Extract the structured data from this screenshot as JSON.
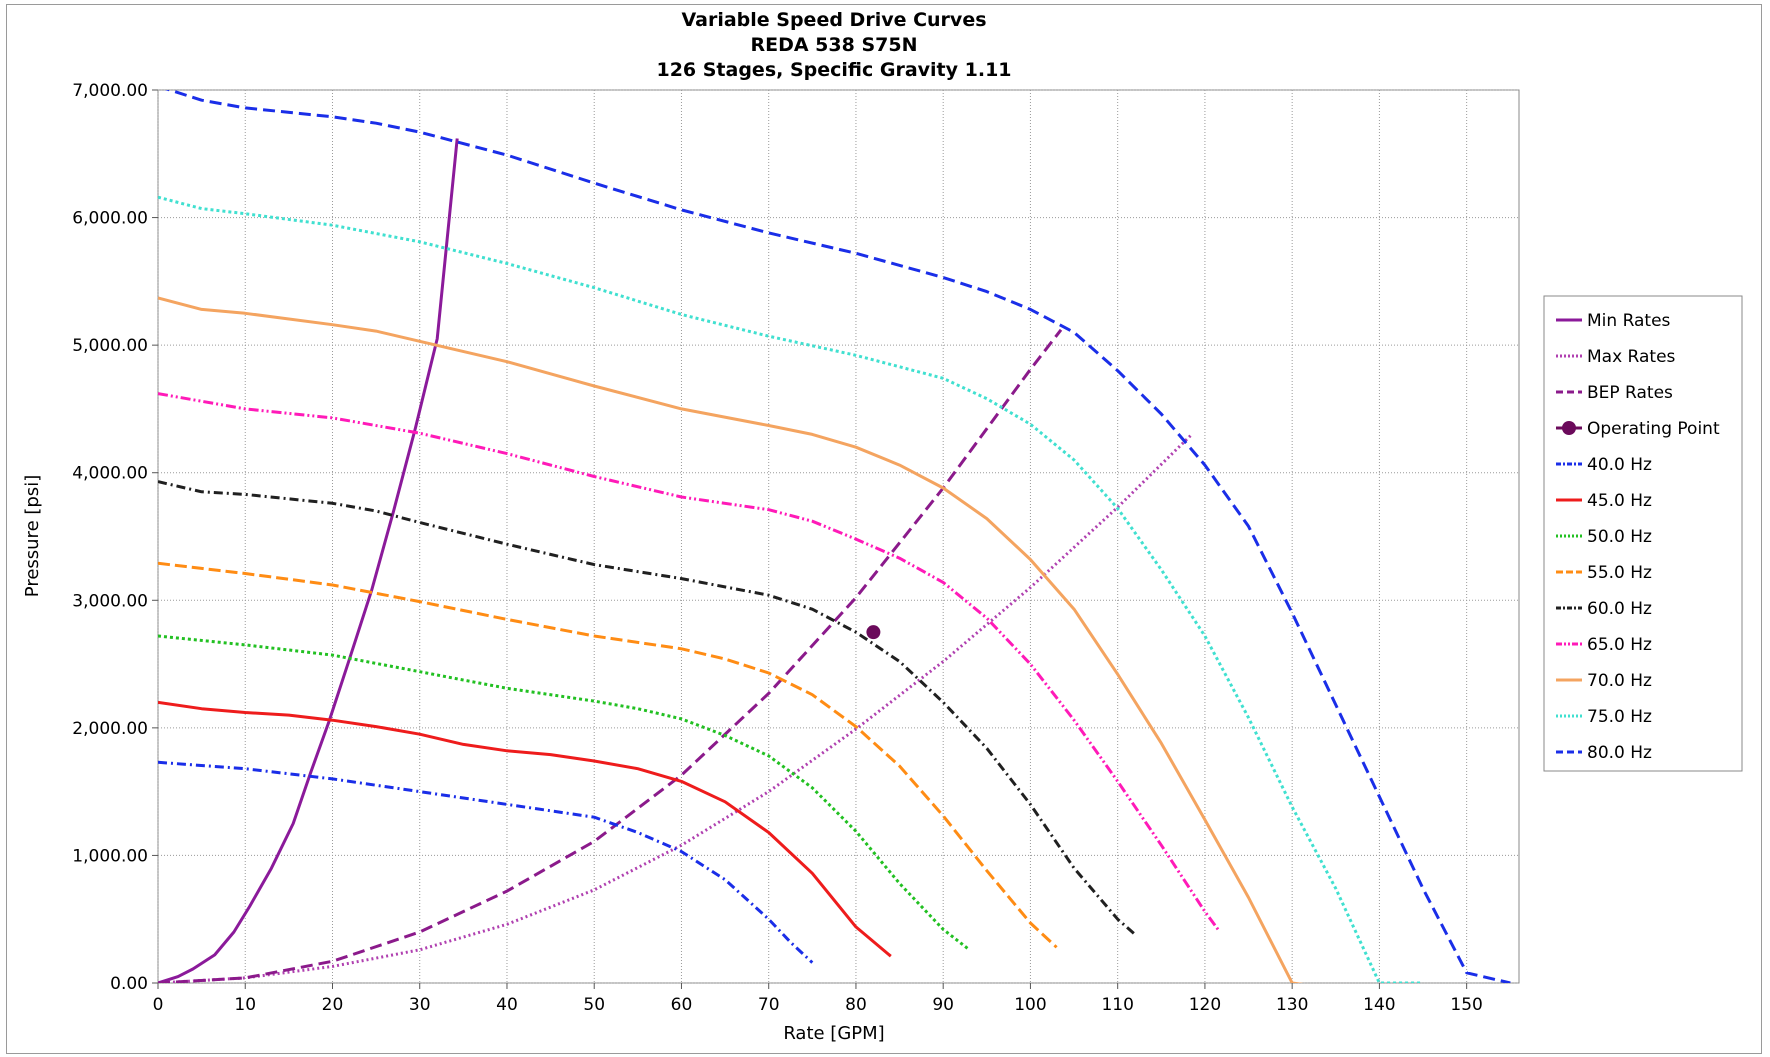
{
  "chart_data": {
    "type": "line",
    "title": [
      "Variable Speed Drive Curves",
      "REDA 538 S75N",
      "126 Stages,  Specific Gravity 1.11"
    ],
    "xlabel": "Rate [GPM]",
    "ylabel": "Pressure [psi]",
    "xlim": [
      0,
      156
    ],
    "ylim": [
      0,
      7000
    ],
    "xticks": [
      0,
      10,
      20,
      30,
      40,
      50,
      60,
      70,
      80,
      90,
      100,
      110,
      120,
      130,
      140,
      150
    ],
    "xtick_labels": [
      "0",
      "10",
      "20",
      "30",
      "40",
      "50",
      "60",
      "70",
      "80",
      "90",
      "100",
      "110",
      "120",
      "130",
      "140",
      "150"
    ],
    "yticks": [
      0,
      1000,
      2000,
      3000,
      4000,
      5000,
      6000,
      7000
    ],
    "ytick_labels": [
      "0.00",
      "1,000.00",
      "2,000.00",
      "3,000.00",
      "4,000.00",
      "5,000.00",
      "6,000.00",
      "7,000.00"
    ],
    "grid": true,
    "legend_position": "right",
    "series": [
      {
        "name": "Min Rates",
        "color": "#8b1a9a",
        "dash": "solid",
        "x": [
          0,
          2.3,
          4,
          6.5,
          8.7,
          10.5,
          13,
          15.5,
          17.5,
          19.6,
          22,
          24.5,
          27,
          29.5,
          32,
          34.3
        ],
        "y": [
          0,
          50,
          110,
          220,
          400,
          600,
          900,
          1250,
          1650,
          2050,
          2550,
          3080,
          3700,
          4350,
          5050,
          6620
        ]
      },
      {
        "name": "Max Rates",
        "color": "#b040b0",
        "dash": "2,3",
        "x": [
          0,
          10,
          20,
          30,
          40,
          50,
          60,
          70,
          80,
          90,
          100,
          110,
          118.5
        ],
        "y": [
          0,
          40,
          130,
          260,
          460,
          730,
          1080,
          1500,
          1990,
          2520,
          3100,
          3730,
          4300
        ]
      },
      {
        "name": "BEP Rates",
        "color": "#8b1a8b",
        "dash": "12,6",
        "x": [
          0,
          10,
          20,
          30,
          40,
          50,
          60,
          70,
          80,
          90,
          100,
          103.5
        ],
        "y": [
          0,
          40,
          170,
          400,
          720,
          1110,
          1630,
          2270,
          3020,
          3880,
          4810,
          5120
        ]
      },
      {
        "name": "40.0 Hz",
        "color": "#1a2ee8",
        "dash": "9,4,2,4",
        "x": [
          0,
          10,
          20,
          30,
          40,
          50,
          55,
          60,
          65,
          70,
          72.5,
          75
        ],
        "y": [
          1730,
          1680,
          1600,
          1500,
          1400,
          1300,
          1180,
          1030,
          810,
          500,
          320,
          160
        ]
      },
      {
        "name": "45.0 Hz",
        "color": "#ee1c1c",
        "dash": "solid",
        "x": [
          0,
          5,
          10,
          15,
          20,
          25,
          30,
          35,
          40,
          45,
          50,
          55,
          60,
          65,
          70,
          75,
          80,
          84
        ],
        "y": [
          2200,
          2150,
          2120,
          2100,
          2060,
          2010,
          1950,
          1870,
          1820,
          1790,
          1740,
          1680,
          1580,
          1420,
          1180,
          860,
          440,
          210
        ]
      },
      {
        "name": "50.0 Hz",
        "color": "#22c022",
        "dash": "3,3",
        "x": [
          0,
          10,
          20,
          30,
          40,
          50,
          55,
          60,
          65,
          70,
          75,
          80,
          85,
          90,
          93
        ],
        "y": [
          2720,
          2650,
          2570,
          2440,
          2310,
          2210,
          2150,
          2070,
          1940,
          1780,
          1530,
          1190,
          780,
          420,
          260
        ]
      },
      {
        "name": "55.0 Hz",
        "color": "#ff8c14",
        "dash": "12,5",
        "x": [
          0,
          10,
          20,
          30,
          40,
          50,
          60,
          65,
          70,
          75,
          80,
          85,
          90,
          95,
          100,
          103
        ],
        "y": [
          3290,
          3210,
          3120,
          2990,
          2850,
          2720,
          2620,
          2540,
          2430,
          2260,
          2010,
          1700,
          1310,
          880,
          470,
          280
        ]
      },
      {
        "name": "60.0 Hz",
        "color": "#202020",
        "dash": "9,4,2,4",
        "x": [
          0,
          5,
          10,
          20,
          25,
          30,
          40,
          50,
          60,
          70,
          75,
          80,
          85,
          90,
          95,
          100,
          105,
          110,
          112
        ],
        "y": [
          3930,
          3850,
          3830,
          3760,
          3700,
          3610,
          3440,
          3280,
          3170,
          3040,
          2930,
          2750,
          2520,
          2200,
          1840,
          1400,
          900,
          500,
          380
        ]
      },
      {
        "name": "65.0 Hz",
        "color": "#ff1ab8",
        "dash": "10,3,2,3,2,3",
        "x": [
          0,
          10,
          20,
          30,
          40,
          50,
          60,
          70,
          75,
          80,
          85,
          90,
          95,
          100,
          105,
          110,
          115,
          120,
          121.5
        ],
        "y": [
          4620,
          4500,
          4430,
          4310,
          4150,
          3970,
          3810,
          3710,
          3620,
          3480,
          3330,
          3140,
          2860,
          2500,
          2060,
          1580,
          1080,
          560,
          420
        ]
      },
      {
        "name": "70.0 Hz",
        "color": "#f4a460",
        "dash": "solid",
        "x": [
          0,
          5,
          10,
          20,
          25,
          30,
          40,
          50,
          60,
          70,
          75,
          80,
          85,
          90,
          95,
          100,
          105,
          110,
          115,
          120,
          125,
          130,
          135.5
        ],
        "y": [
          5370,
          5280,
          5250,
          5160,
          5110,
          5030,
          4870,
          4680,
          4500,
          4370,
          4300,
          4200,
          4060,
          3880,
          3640,
          3320,
          2930,
          2420,
          1880,
          1280,
          670,
          0,
          -50
        ]
      },
      {
        "name": "75.0 Hz",
        "color": "#40e0d0",
        "dash": "3,3",
        "x": [
          0,
          5,
          10,
          20,
          30,
          40,
          50,
          60,
          70,
          80,
          90,
          95,
          100,
          105,
          110,
          115,
          120,
          125,
          130,
          135,
          140,
          145
        ],
        "y": [
          6160,
          6070,
          6030,
          5940,
          5810,
          5640,
          5450,
          5240,
          5070,
          4920,
          4740,
          4580,
          4380,
          4100,
          3720,
          3240,
          2720,
          2080,
          1380,
          740,
          0,
          0
        ]
      },
      {
        "name": "80.0 Hz",
        "color": "#1a2ee8",
        "dash": "12,6",
        "x": [
          0,
          5,
          10,
          20,
          25,
          30,
          40,
          50,
          60,
          70,
          80,
          90,
          95,
          100,
          105,
          110,
          115,
          120,
          125,
          130,
          135,
          140,
          145,
          150,
          155
        ],
        "y": [
          7030,
          6920,
          6860,
          6790,
          6740,
          6670,
          6490,
          6270,
          6060,
          5880,
          5720,
          5530,
          5420,
          5280,
          5100,
          4800,
          4460,
          4060,
          3580,
          2900,
          2180,
          1460,
          740,
          80,
          0
        ]
      }
    ],
    "operating_point": {
      "name": "Operating Point",
      "x": 82,
      "y": 2750,
      "color": "#6b0a5b"
    }
  }
}
